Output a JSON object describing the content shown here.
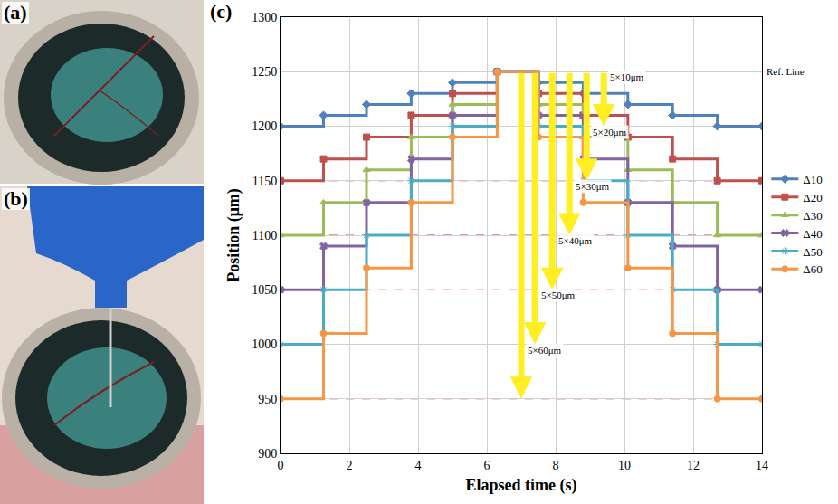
{
  "panel_labels": [
    "(a)",
    "(b)",
    "(c)"
  ],
  "chart_data": {
    "type": "line",
    "xlabel": "Elapsed time (s)",
    "ylabel": "Position (μm)",
    "x": [
      0,
      1.25,
      2.5,
      3.8,
      5.0,
      6.3,
      7.5,
      8.8,
      10.1,
      11.4,
      12.7,
      14
    ],
    "series": [
      {
        "name": "Δ10",
        "color": "#4f81bd",
        "marker": "diamond",
        "line_style": "step",
        "values": [
          1200,
          1210,
          1220,
          1230,
          1240,
          1250,
          1240,
          1230,
          1220,
          1210,
          1200,
          1200
        ]
      },
      {
        "name": "Δ20",
        "color": "#c0504d",
        "marker": "square",
        "line_style": "step",
        "values": [
          1150,
          1170,
          1190,
          1210,
          1230,
          1250,
          1230,
          1210,
          1190,
          1170,
          1150,
          1150
        ]
      },
      {
        "name": "Δ30",
        "color": "#9bbb59",
        "marker": "triangle",
        "line_style": "step",
        "values": [
          1100,
          1130,
          1160,
          1190,
          1220,
          1250,
          1220,
          1190,
          1160,
          1130,
          1100,
          1100
        ]
      },
      {
        "name": "Δ40",
        "color": "#8064a2",
        "marker": "x",
        "line_style": "step",
        "values": [
          1050,
          1090,
          1130,
          1170,
          1210,
          1250,
          1210,
          1170,
          1130,
          1090,
          1050,
          1050
        ]
      },
      {
        "name": "Δ50",
        "color": "#4bacc6",
        "marker": "star",
        "line_style": "step",
        "values": [
          1000,
          1050,
          1100,
          1150,
          1200,
          1250,
          1200,
          1150,
          1100,
          1050,
          1000,
          1000
        ]
      },
      {
        "name": "Δ60",
        "color": "#f79646",
        "marker": "circle",
        "line_style": "step",
        "values": [
          950,
          1010,
          1070,
          1130,
          1190,
          1250,
          1190,
          1130,
          1070,
          1010,
          950,
          950
        ]
      }
    ],
    "xlim": [
      0,
      14
    ],
    "xticks": [
      0,
      2,
      4,
      6,
      8,
      10,
      12,
      14
    ],
    "ylim": [
      900,
      1300
    ],
    "yticks": [
      900,
      950,
      1000,
      1050,
      1100,
      1150,
      1200,
      1250,
      1300
    ],
    "grid": true,
    "legend": "right",
    "ref_line": {
      "value": 1250,
      "label": "Ref. Line"
    },
    "guide_lines": [
      950,
      1000,
      1050,
      1100,
      1150,
      1200
    ],
    "arrows": [
      {
        "text": "5×10μm",
        "x": 9.4,
        "y_from": 1250,
        "y_to": 1200
      },
      {
        "text": "5×20μm",
        "x": 8.9,
        "y_from": 1250,
        "y_to": 1150
      },
      {
        "text": "5×30μm",
        "x": 8.4,
        "y_from": 1250,
        "y_to": 1100
      },
      {
        "text": "5×40μm",
        "x": 7.9,
        "y_from": 1250,
        "y_to": 1050
      },
      {
        "text": "5×50μm",
        "x": 7.4,
        "y_from": 1250,
        "y_to": 1000
      },
      {
        "text": "5×60μm",
        "x": 7.0,
        "y_from": 1250,
        "y_to": 950
      }
    ]
  }
}
